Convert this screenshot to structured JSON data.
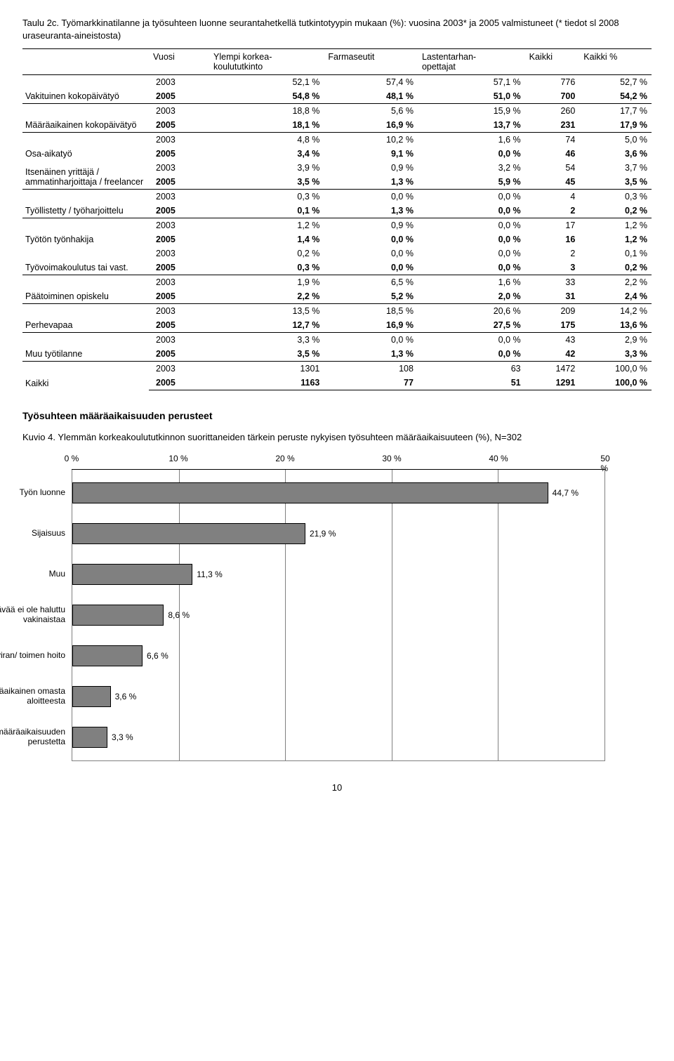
{
  "tableTitle": "Taulu 2c. Työmarkkinatilanne ja työsuhteen luonne seurantahetkellä tutkintotyypin mukaan (%): vuosina 2003* ja 2005 valmistuneet (* tiedot sl 2008 uraseuranta-aineistosta)",
  "columns": [
    "Vuosi",
    "Ylempi korkea-\nkoulututkinto",
    "Farmaseutit",
    "Lastentarhan-\nopettajat",
    "Kaikki",
    "Kaikki %"
  ],
  "groups": [
    {
      "label": "Vakituinen kokopäivätyö",
      "rows": [
        {
          "year": "2003",
          "c": [
            "52,1 %",
            "57,4 %",
            "57,1 %",
            "776",
            "52,7 %"
          ],
          "bold": false
        },
        {
          "year": "2005",
          "c": [
            "54,8 %",
            "48,1 %",
            "51,0 %",
            "700",
            "54,2 %"
          ],
          "bold": true
        }
      ],
      "sep": true
    },
    {
      "label": "Määräaikainen kokopäivätyö",
      "rows": [
        {
          "year": "2003",
          "c": [
            "18,8 %",
            "5,6 %",
            "15,9 %",
            "260",
            "17,7 %"
          ],
          "bold": false
        },
        {
          "year": "2005",
          "c": [
            "18,1 %",
            "16,9 %",
            "13,7 %",
            "231",
            "17,9 %"
          ],
          "bold": true
        }
      ],
      "sep": true
    },
    {
      "label": "Osa-aikatyö",
      "rows": [
        {
          "year": "2003",
          "c": [
            "4,8 %",
            "10,2 %",
            "1,6 %",
            "74",
            "5,0 %"
          ],
          "bold": false
        },
        {
          "year": "2005",
          "c": [
            "3,4 %",
            "9,1 %",
            "0,0 %",
            "46",
            "3,6 %"
          ],
          "bold": true
        }
      ],
      "sep": true
    },
    {
      "label": "Itsenäinen yrittäjä / ammatinharjoittaja / freelancer",
      "rows": [
        {
          "year": "2003",
          "c": [
            "3,9 %",
            "0,9 %",
            "3,2 %",
            "54",
            "3,7 %"
          ],
          "bold": false
        },
        {
          "year": "2005",
          "c": [
            "3,5 %",
            "1,3 %",
            "5,9 %",
            "45",
            "3,5 %"
          ],
          "bold": true
        }
      ],
      "sep": false
    },
    {
      "label": "Työllistetty / työharjoittelu",
      "rows": [
        {
          "year": "2003",
          "c": [
            "0,3 %",
            "0,0 %",
            "0,0 %",
            "4",
            "0,3 %"
          ],
          "bold": false
        },
        {
          "year": "2005",
          "c": [
            "0,1 %",
            "1,3 %",
            "0,0 %",
            "2",
            "0,2 %"
          ],
          "bold": true
        }
      ],
      "sep": true
    },
    {
      "label": "Työtön työnhakija",
      "rows": [
        {
          "year": "2003",
          "c": [
            "1,2 %",
            "0,9 %",
            "0,0 %",
            "17",
            "1,2 %"
          ],
          "bold": false
        },
        {
          "year": "2005",
          "c": [
            "1,4 %",
            "0,0 %",
            "0,0 %",
            "16",
            "1,2 %"
          ],
          "bold": true
        }
      ],
      "sep": true
    },
    {
      "label": "Työvoimakoulutus tai vast.",
      "rows": [
        {
          "year": "2003",
          "c": [
            "0,2 %",
            "0,0 %",
            "0,0 %",
            "2",
            "0,1 %"
          ],
          "bold": false
        },
        {
          "year": "2005",
          "c": [
            "0,3 %",
            "0,0 %",
            "0,0 %",
            "3",
            "0,2 %"
          ],
          "bold": true
        }
      ],
      "sep": false
    },
    {
      "label": "Päätoiminen opiskelu",
      "rows": [
        {
          "year": "2003",
          "c": [
            "1,9 %",
            "6,5 %",
            "1,6 %",
            "33",
            "2,2 %"
          ],
          "bold": false
        },
        {
          "year": "2005",
          "c": [
            "2,2 %",
            "5,2 %",
            "2,0 %",
            "31",
            "2,4 %"
          ],
          "bold": true
        }
      ],
      "sep": true
    },
    {
      "label": "Perhevapaa",
      "rows": [
        {
          "year": "2003",
          "c": [
            "13,5 %",
            "18,5 %",
            "20,6 %",
            "209",
            "14,2 %"
          ],
          "bold": false
        },
        {
          "year": "2005",
          "c": [
            "12,7 %",
            "16,9 %",
            "27,5 %",
            "175",
            "13,6 %"
          ],
          "bold": true
        }
      ],
      "sep": true
    },
    {
      "label": "Muu työtilanne",
      "rows": [
        {
          "year": "2003",
          "c": [
            "3,3 %",
            "0,0 %",
            "0,0 %",
            "43",
            "2,9 %"
          ],
          "bold": false
        },
        {
          "year": "2005",
          "c": [
            "3,5 %",
            "1,3 %",
            "0,0 %",
            "42",
            "3,3 %"
          ],
          "bold": true
        }
      ],
      "sep": true
    },
    {
      "label": "Kaikki",
      "rows": [
        {
          "year": "2003",
          "c": [
            "1301",
            "108",
            "63",
            "1472",
            "100,0 %"
          ],
          "bold": false
        },
        {
          "year": "2005",
          "c": [
            "1163",
            "77",
            "51",
            "1291",
            "100,0 %"
          ],
          "bold": true
        }
      ],
      "sep": true
    }
  ],
  "sectionTitle": "Työsuhteen määräaikaisuuden perusteet",
  "figTitle": "Kuvio 4. Ylemmän korkeakoulututkinnon suorittaneiden tärkein peruste nykyisen työsuhteen määräaikaisuuteen (%), N=302",
  "chart": {
    "type": "bar-horizontal",
    "xmax": 50,
    "xtick_step": 10,
    "xtick_labels": [
      "0 %",
      "10 %",
      "20 %",
      "30 %",
      "40 %",
      "50 %"
    ],
    "bar_color": "#808080",
    "bar_border": "#000000",
    "grid_color": "#808080",
    "background": "#ffffff",
    "label_fontsize": 12,
    "bars": [
      {
        "label": "Työn luonne",
        "value": 44.7,
        "text": "44,7 %"
      },
      {
        "label": "Sijaisuus",
        "value": 21.9,
        "text": "21,9 %"
      },
      {
        "label": "Muu",
        "value": 11.3,
        "text": "11,3 %"
      },
      {
        "label": "Tehtävää ei ole haluttu vakinaistaa",
        "value": 8.6,
        "text": "8,6 %"
      },
      {
        "label": "Avoimen viran/ toimen hoito",
        "value": 6.6,
        "text": "6,6 %"
      },
      {
        "label": "Työ on määräaikainen omasta aloitteesta",
        "value": 3.6,
        "text": "3,6 %"
      },
      {
        "label": "Ei tiedä työn määräaikaisuuden perustetta",
        "value": 3.3,
        "text": "3,3 %"
      }
    ]
  },
  "pageNumber": "10"
}
